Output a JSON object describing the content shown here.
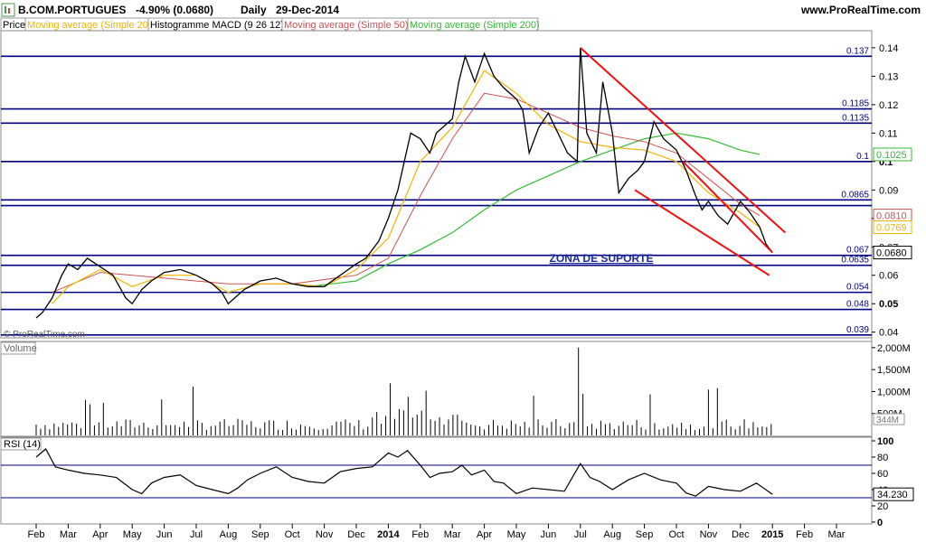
{
  "header": {
    "symbol": "B.COM.PORTUGUES",
    "change": "-4.90% (0.0680)",
    "interval": "Daily",
    "date": "29-Dec-2014",
    "site": "www.ProRealTime.com"
  },
  "legend": [
    {
      "label": "Price",
      "color": "#000000"
    },
    {
      "label": "Moving average (Simple 20)",
      "color": "#f0b400"
    },
    {
      "label": "Histogramme MACD (9 26 12)",
      "color": "#000000"
    },
    {
      "label": "Moving average (Simple 50)",
      "color": "#d05050"
    },
    {
      "label": "Moving average (Simple 200)",
      "color": "#33bb33"
    }
  ],
  "watermark": "© ProRealTime.com",
  "chart_data": {
    "type": "line",
    "x_labels": [
      "Feb",
      "Mar",
      "Apr",
      "May",
      "Jun",
      "Jul",
      "Aug",
      "Sep",
      "Oct",
      "Nov",
      "Dec",
      "2014",
      "Feb",
      "Mar",
      "Apr",
      "May",
      "Jun",
      "Jul",
      "Aug",
      "Sep",
      "Oct",
      "Nov",
      "Dec",
      "2015",
      "Feb",
      "Mar"
    ],
    "price_panel": {
      "ylim": [
        0.038,
        0.146
      ],
      "ticks": [
        "0.14",
        "0.13",
        "0.12",
        "0.11",
        "0.1",
        "0.09",
        "0.08",
        "0.07",
        "0.06",
        "0.05",
        "0.04"
      ],
      "levels": [
        {
          "value": 0.137,
          "label": "0.137"
        },
        {
          "value": 0.1185,
          "label": "0.1185"
        },
        {
          "value": 0.1135,
          "label": "0.1135"
        },
        {
          "value": 0.1,
          "label": "0.1"
        },
        {
          "value": 0.0865,
          "label": "0.0865"
        },
        {
          "value": 0.0845,
          "label": ""
        },
        {
          "value": 0.067,
          "label": "0.067"
        },
        {
          "value": 0.0635,
          "label": "0.0635"
        },
        {
          "value": 0.054,
          "label": "0.054"
        },
        {
          "value": 0.048,
          "label": "0.048"
        },
        {
          "value": 0.039,
          "label": "0.039"
        }
      ],
      "price_series": [
        [
          0,
          0.045
        ],
        [
          0.2,
          0.047
        ],
        [
          0.5,
          0.052
        ],
        [
          0.8,
          0.06
        ],
        [
          1,
          0.064
        ],
        [
          1.3,
          0.062
        ],
        [
          1.6,
          0.066
        ],
        [
          2,
          0.063
        ],
        [
          2.4,
          0.06
        ],
        [
          2.8,
          0.052
        ],
        [
          3,
          0.05
        ],
        [
          3.3,
          0.055
        ],
        [
          3.6,
          0.058
        ],
        [
          4,
          0.061
        ],
        [
          4.5,
          0.062
        ],
        [
          5,
          0.06
        ],
        [
          5.5,
          0.057
        ],
        [
          5.8,
          0.054
        ],
        [
          6,
          0.05
        ],
        [
          6.2,
          0.052
        ],
        [
          6.5,
          0.055
        ],
        [
          7,
          0.058
        ],
        [
          7.5,
          0.059
        ],
        [
          8,
          0.057
        ],
        [
          8.5,
          0.056
        ],
        [
          9,
          0.056
        ],
        [
          9.5,
          0.06
        ],
        [
          10,
          0.064
        ],
        [
          10.3,
          0.066
        ],
        [
          10.7,
          0.072
        ],
        [
          11,
          0.08
        ],
        [
          11.3,
          0.09
        ],
        [
          11.5,
          0.1
        ],
        [
          11.7,
          0.11
        ],
        [
          12,
          0.108
        ],
        [
          12.3,
          0.103
        ],
        [
          12.5,
          0.11
        ],
        [
          12.8,
          0.113
        ],
        [
          13,
          0.115
        ],
        [
          13.2,
          0.128
        ],
        [
          13.4,
          0.137
        ],
        [
          13.7,
          0.128
        ],
        [
          14,
          0.138
        ],
        [
          14.3,
          0.13
        ],
        [
          14.6,
          0.126
        ],
        [
          15,
          0.122
        ],
        [
          15.2,
          0.118
        ],
        [
          15.4,
          0.103
        ],
        [
          15.7,
          0.112
        ],
        [
          16,
          0.117
        ],
        [
          16.3,
          0.11
        ],
        [
          16.6,
          0.103
        ],
        [
          16.9,
          0.1
        ],
        [
          17,
          0.14
        ],
        [
          17.2,
          0.11
        ],
        [
          17.5,
          0.103
        ],
        [
          17.7,
          0.128
        ],
        [
          18,
          0.11
        ],
        [
          18.2,
          0.089
        ],
        [
          18.5,
          0.094
        ],
        [
          18.8,
          0.097
        ],
        [
          19,
          0.1
        ],
        [
          19.3,
          0.114
        ],
        [
          19.6,
          0.108
        ],
        [
          20,
          0.104
        ],
        [
          20.3,
          0.097
        ],
        [
          20.6,
          0.088
        ],
        [
          20.8,
          0.083
        ],
        [
          21,
          0.086
        ],
        [
          21.3,
          0.081
        ],
        [
          21.6,
          0.078
        ],
        [
          22,
          0.086
        ],
        [
          22.3,
          0.082
        ],
        [
          22.6,
          0.077
        ],
        [
          22.8,
          0.071
        ],
        [
          23,
          0.068
        ]
      ],
      "sma20": [
        [
          0.5,
          0.05
        ],
        [
          1,
          0.056
        ],
        [
          2,
          0.062
        ],
        [
          3,
          0.056
        ],
        [
          4,
          0.06
        ],
        [
          5,
          0.06
        ],
        [
          6,
          0.054
        ],
        [
          7,
          0.057
        ],
        [
          8,
          0.057
        ],
        [
          9,
          0.056
        ],
        [
          10,
          0.062
        ],
        [
          11,
          0.073
        ],
        [
          12,
          0.1
        ],
        [
          13,
          0.112
        ],
        [
          14,
          0.132
        ],
        [
          15,
          0.124
        ],
        [
          16,
          0.113
        ],
        [
          17,
          0.107
        ],
        [
          18,
          0.105
        ],
        [
          19,
          0.104
        ],
        [
          20,
          0.1
        ],
        [
          21,
          0.089
        ],
        [
          22,
          0.082
        ],
        [
          22.6,
          0.0769
        ]
      ],
      "sma50": [
        [
          0.5,
          0.054
        ],
        [
          2,
          0.061
        ],
        [
          4,
          0.059
        ],
        [
          6,
          0.057
        ],
        [
          8,
          0.057
        ],
        [
          10,
          0.06
        ],
        [
          11,
          0.066
        ],
        [
          12,
          0.088
        ],
        [
          13,
          0.108
        ],
        [
          14,
          0.124
        ],
        [
          15,
          0.122
        ],
        [
          16,
          0.117
        ],
        [
          17,
          0.112
        ],
        [
          18,
          0.109
        ],
        [
          19,
          0.107
        ],
        [
          20,
          0.103
        ],
        [
          21,
          0.094
        ],
        [
          22,
          0.085
        ],
        [
          22.6,
          0.081
        ]
      ],
      "sma200": [
        [
          8.5,
          0.056
        ],
        [
          10,
          0.058
        ],
        [
          11,
          0.064
        ],
        [
          12,
          0.069
        ],
        [
          13,
          0.075
        ],
        [
          14,
          0.083
        ],
        [
          15,
          0.09
        ],
        [
          16,
          0.095
        ],
        [
          17,
          0.1
        ],
        [
          18,
          0.104
        ],
        [
          19,
          0.108
        ],
        [
          20,
          0.11
        ],
        [
          21,
          0.108
        ],
        [
          22,
          0.104
        ],
        [
          22.6,
          0.1025
        ]
      ],
      "channel_lines": [
        {
          "from": [
            17,
            0.14
          ],
          "to": [
            23.4,
            0.075
          ]
        },
        {
          "from": [
            18.7,
            0.09
          ],
          "to": [
            22.9,
            0.06
          ]
        },
        {
          "from": [
            20.2,
            0.1
          ],
          "to": [
            23,
            0.068
          ]
        }
      ],
      "annotation": "ZONA DE SUPORTE",
      "value_tags": [
        {
          "value": 0.1025,
          "label": "0.1025",
          "color": "#33bb33"
        },
        {
          "value": 0.081,
          "label": "0.0810",
          "color": "#d05050"
        },
        {
          "value": 0.0769,
          "label": "0.0769",
          "color": "#f0b400"
        },
        {
          "value": 0.068,
          "label": "0.0680",
          "color": "#000000"
        }
      ]
    },
    "volume_panel": {
      "title": "Volume",
      "ticks": [
        "2,000M",
        "1,500M",
        "1,000M",
        "500M"
      ],
      "last_label": "344M",
      "ymax": 2100
    },
    "rsi_panel": {
      "title": "RSI (14)",
      "ticks": [
        "100",
        "80",
        "60",
        "40",
        "20",
        "0"
      ],
      "bands": [
        70,
        30
      ],
      "last_label": "34.230",
      "series": [
        [
          0,
          80
        ],
        [
          0.3,
          90
        ],
        [
          0.6,
          68
        ],
        [
          1,
          64
        ],
        [
          1.5,
          60
        ],
        [
          2,
          58
        ],
        [
          2.5,
          55
        ],
        [
          3,
          40
        ],
        [
          3.3,
          35
        ],
        [
          3.6,
          48
        ],
        [
          4,
          55
        ],
        [
          4.5,
          58
        ],
        [
          5,
          45
        ],
        [
          5.5,
          40
        ],
        [
          6,
          35
        ],
        [
          6.3,
          42
        ],
        [
          6.6,
          52
        ],
        [
          7,
          60
        ],
        [
          7.5,
          68
        ],
        [
          8,
          55
        ],
        [
          8.5,
          50
        ],
        [
          9,
          48
        ],
        [
          9.5,
          62
        ],
        [
          10,
          66
        ],
        [
          10.5,
          68
        ],
        [
          11,
          85
        ],
        [
          11.3,
          80
        ],
        [
          11.6,
          88
        ],
        [
          12,
          70
        ],
        [
          12.3,
          55
        ],
        [
          12.6,
          60
        ],
        [
          13,
          62
        ],
        [
          13.3,
          70
        ],
        [
          13.6,
          58
        ],
        [
          14,
          64
        ],
        [
          14.3,
          50
        ],
        [
          14.6,
          48
        ],
        [
          15,
          35
        ],
        [
          15.5,
          42
        ],
        [
          16,
          40
        ],
        [
          16.5,
          38
        ],
        [
          17,
          72
        ],
        [
          17.3,
          55
        ],
        [
          17.6,
          50
        ],
        [
          18,
          40
        ],
        [
          18.5,
          52
        ],
        [
          19,
          60
        ],
        [
          19.5,
          52
        ],
        [
          20,
          48
        ],
        [
          20.3,
          36
        ],
        [
          20.6,
          32
        ],
        [
          21,
          44
        ],
        [
          21.5,
          40
        ],
        [
          22,
          38
        ],
        [
          22.5,
          48
        ],
        [
          23,
          34.23
        ]
      ]
    }
  }
}
